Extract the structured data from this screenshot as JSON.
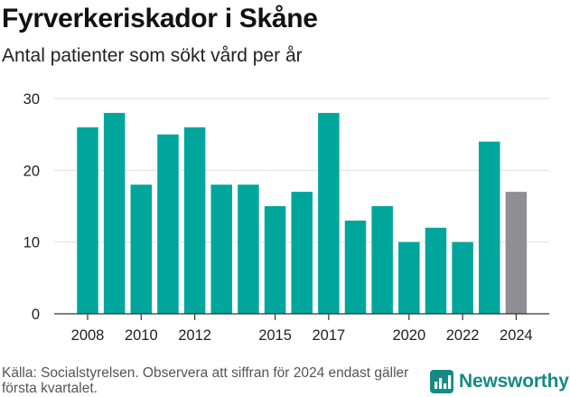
{
  "header": {
    "title": "Fyrverkeriskador i Skåne",
    "subtitle": "Antal patienter som sökt vård per år"
  },
  "footer": {
    "source": "Källa: Socialstyrelsen. Observera att siffran för 2024 endast gäller första kvartalet.",
    "brand": "Newsworthy",
    "brand_icon": "bar-chart-logo-icon"
  },
  "colors": {
    "bar": "#00a69c",
    "highlight": "#8e8e93",
    "grid": "#e3e3e3",
    "brand": "#168b83"
  },
  "chart_data": {
    "type": "bar",
    "title": "Fyrverkeriskador i Skåne",
    "subtitle": "Antal patienter som sökt vård per år",
    "categories": [
      "2008",
      "2009",
      "2010",
      "2011",
      "2012",
      "2013",
      "2014",
      "2015",
      "2016",
      "2017",
      "2018",
      "2019",
      "2020",
      "2021",
      "2022",
      "2023",
      "2024"
    ],
    "values": [
      26,
      28,
      18,
      25,
      26,
      18,
      18,
      15,
      17,
      28,
      13,
      15,
      10,
      12,
      10,
      24,
      17
    ],
    "highlight_category": "2024",
    "x_tick_labels": [
      "2008",
      "2010",
      "2012",
      "2015",
      "2017",
      "2020",
      "2022",
      "2024"
    ],
    "y_ticks": [
      0,
      10,
      20,
      30
    ],
    "ylim": [
      0,
      30
    ],
    "xlabel": "",
    "ylabel": "",
    "grid": true,
    "legend": "none"
  }
}
